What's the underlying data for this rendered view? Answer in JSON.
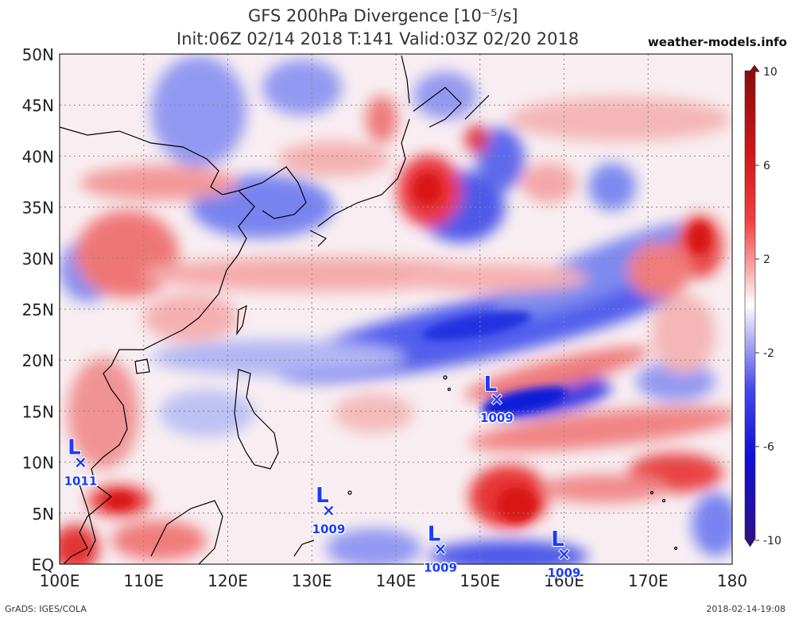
{
  "header": {
    "title": "GFS 200hPa Divergence [10⁻⁵/s]",
    "subtitle": "Init:06Z 02/14 2018 T:141 Valid:03Z 02/20 2018",
    "site": "weather-models.info"
  },
  "footer": {
    "left": "GrADS: IGES/COLA",
    "right": "2018-02-14-19:08"
  },
  "axes": {
    "lon_labels": [
      "100E",
      "110E",
      "120E",
      "130E",
      "140E",
      "150E",
      "160E",
      "170E",
      "180"
    ],
    "lat_labels": [
      "EQ",
      "5N",
      "10N",
      "15N",
      "20N",
      "25N",
      "30N",
      "35N",
      "40N",
      "45N",
      "50N"
    ]
  },
  "colorbar": {
    "ticks": [
      "10",
      "6",
      "2",
      "-2",
      "-6",
      "-10"
    ],
    "colors": [
      "#a01010",
      "#e02020",
      "#f06060",
      "#f6a8a8",
      "#fbe0e0",
      "#ffffff",
      "#dcdcf8",
      "#a8a8f0",
      "#5858f0",
      "#1010e0",
      "#2a1090"
    ]
  },
  "lows": [
    {
      "label": "L",
      "pressure": "1011",
      "lon": 102.5,
      "lat": 10.0
    },
    {
      "label": "L",
      "pressure": "1009",
      "lon": 132.0,
      "lat": 5.3
    },
    {
      "label": "L",
      "pressure": "1009",
      "lon": 145.3,
      "lat": 1.5
    },
    {
      "label": "L",
      "pressure": "1009",
      "lon": 152.0,
      "lat": 16.2
    },
    {
      "label": "L",
      "pressure": "1009",
      "lon": 160.0,
      "lat": 1.0
    }
  ],
  "colors": {
    "positive": "#e8202a",
    "negative": "#2030e8",
    "low_marker": "#1a3bff",
    "coast": "#000000",
    "grid": "#888888"
  }
}
